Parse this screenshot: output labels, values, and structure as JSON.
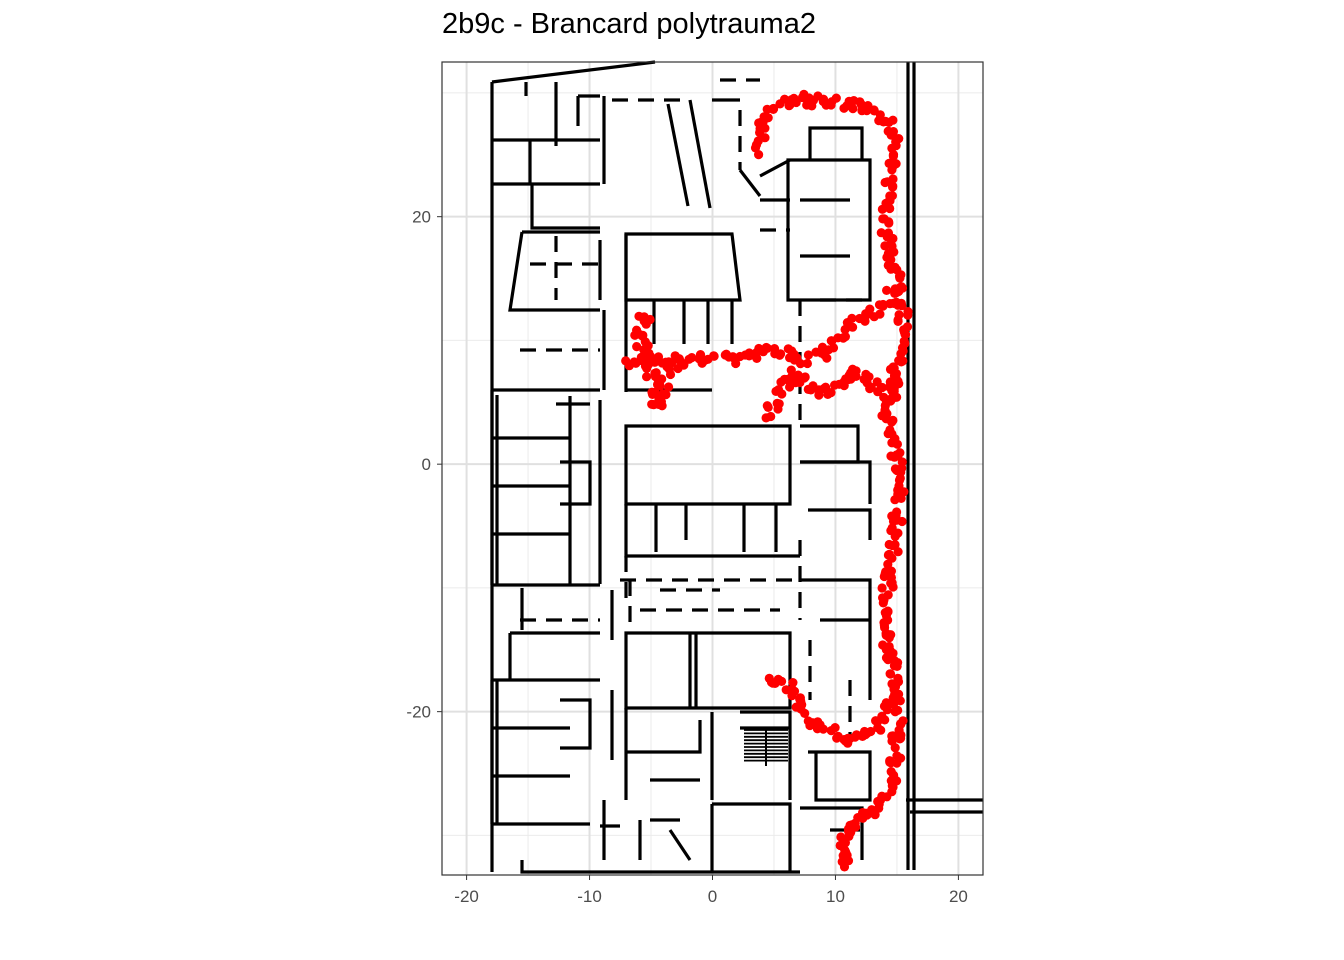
{
  "plot": {
    "title": "2b9c - Brancard polytrauma2"
  },
  "chart_data": {
    "type": "scatter",
    "title": "2b9c - Brancard polytrauma2",
    "xlabel": "",
    "ylabel": "",
    "xlim": [
      -22,
      22
    ],
    "ylim": [
      -33.2,
      32.5
    ],
    "x_ticks": [
      -20,
      -10,
      0,
      10,
      20
    ],
    "y_ticks": [
      -20,
      0,
      20
    ],
    "x_tick_labels": [
      "-20",
      "-10",
      "0",
      "10",
      "20"
    ],
    "y_tick_labels": [
      "-20",
      "0",
      "20"
    ],
    "grid": true,
    "legend": "none",
    "background_layer": "floor plan (black wall segments)",
    "series": [
      {
        "color": "#ff0000",
        "marker": "filled circle",
        "path": [
          [
            11,
            -32.5
          ],
          [
            10.5,
            -31
          ],
          [
            11,
            -29.5
          ],
          [
            12,
            -28.5
          ],
          [
            13.5,
            -27.5
          ],
          [
            14.5,
            -26
          ],
          [
            14.8,
            -24
          ],
          [
            15,
            -22
          ],
          [
            15.2,
            -20
          ],
          [
            15,
            -18
          ],
          [
            14.5,
            -16
          ],
          [
            14,
            -14
          ],
          [
            14,
            -12
          ],
          [
            14.2,
            -10
          ],
          [
            14.5,
            -8
          ],
          [
            14.8,
            -6
          ],
          [
            15,
            -4
          ],
          [
            15.2,
            -2
          ],
          [
            15,
            0
          ],
          [
            14.5,
            2
          ],
          [
            14.2,
            4
          ],
          [
            14.5,
            6
          ],
          [
            15,
            8
          ],
          [
            15.3,
            10
          ],
          [
            15.5,
            12
          ],
          [
            15.3,
            14
          ],
          [
            14.8,
            16
          ],
          [
            14.3,
            18
          ],
          [
            14,
            20
          ],
          [
            14.3,
            22
          ],
          [
            14.6,
            24
          ],
          [
            14.8,
            26
          ],
          [
            14.5,
            27.5
          ],
          [
            13.5,
            28.5
          ],
          [
            12,
            29
          ],
          [
            10,
            29.2
          ],
          [
            8,
            29.4
          ],
          [
            6.5,
            29.5
          ],
          [
            5,
            28.8
          ],
          [
            4,
            27.5
          ],
          [
            3.8,
            26
          ],
          [
            4.2,
            25
          ]
        ]
      },
      {
        "color": "#ff0000",
        "marker": "filled circle",
        "path": [
          [
            15.2,
            14.5
          ],
          [
            14,
            13
          ],
          [
            12.5,
            12
          ],
          [
            11,
            11
          ],
          [
            10,
            10
          ],
          [
            9,
            9
          ],
          [
            7.5,
            8.5
          ],
          [
            6,
            9
          ],
          [
            4.5,
            9
          ],
          [
            3,
            8.8
          ],
          [
            1,
            8.5
          ],
          [
            -1,
            8.6
          ],
          [
            -3,
            8.3
          ],
          [
            -5,
            8.6
          ],
          [
            -7,
            8.3
          ]
        ]
      },
      {
        "color": "#ff0000",
        "marker": "filled circle",
        "path": [
          [
            -5.5,
            12
          ],
          [
            -6,
            10.5
          ],
          [
            -5.5,
            9
          ],
          [
            -5,
            7.5
          ],
          [
            -4.5,
            6
          ],
          [
            -4.5,
            4.5
          ],
          [
            -4,
            6.5
          ],
          [
            -3,
            8
          ]
        ]
      },
      {
        "color": "#ff0000",
        "marker": "filled circle",
        "path": [
          [
            4.5,
            4
          ],
          [
            5.5,
            6
          ],
          [
            6.5,
            7.5
          ],
          [
            8,
            6
          ],
          [
            10,
            6
          ],
          [
            11.5,
            7.5
          ],
          [
            13,
            6.5
          ],
          [
            14.5,
            5.5
          ],
          [
            15,
            7
          ]
        ]
      },
      {
        "color": "#ff0000",
        "marker": "filled circle",
        "path": [
          [
            4.5,
            -17.5
          ],
          [
            6,
            -17.8
          ],
          [
            7,
            -19.5
          ],
          [
            8.5,
            -21
          ],
          [
            10,
            -22
          ],
          [
            11.5,
            -22.2
          ],
          [
            13,
            -21.5
          ],
          [
            14,
            -20.5
          ],
          [
            14.8,
            -19
          ]
        ]
      }
    ]
  }
}
